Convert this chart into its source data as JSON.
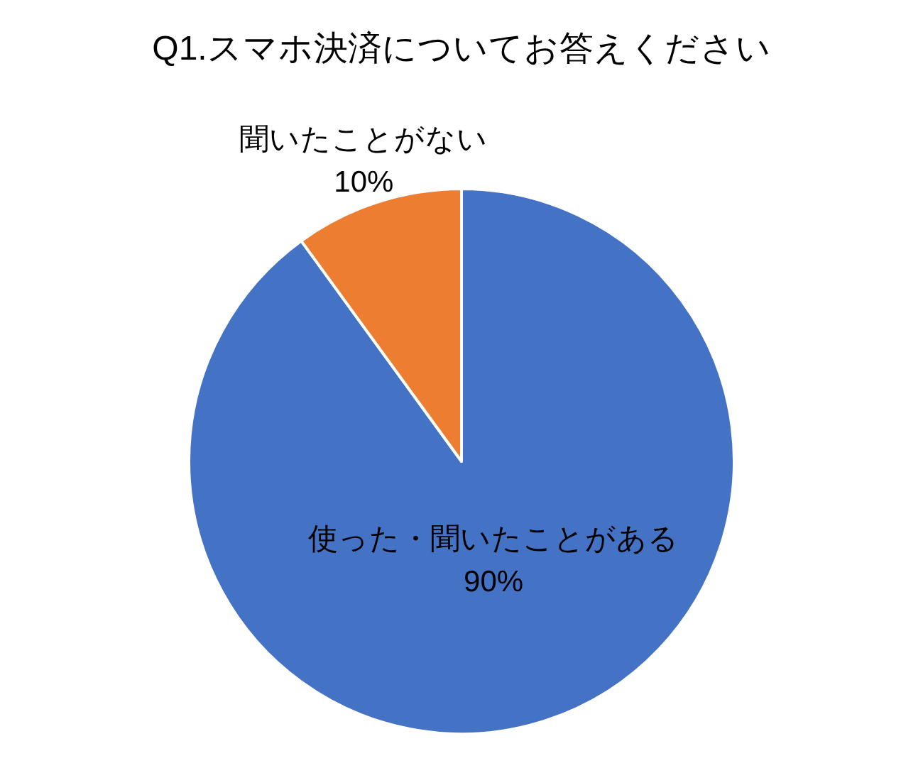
{
  "chart_data": {
    "type": "pie",
    "title": "Q1.スマホ決済についてお答えください",
    "categories": [
      "使った・聞いたことがある",
      "聞いたことがない"
    ],
    "values": [
      90,
      10
    ],
    "colors": [
      "#4472c4",
      "#ed7d31"
    ],
    "value_labels": [
      "90%",
      "10%"
    ]
  }
}
